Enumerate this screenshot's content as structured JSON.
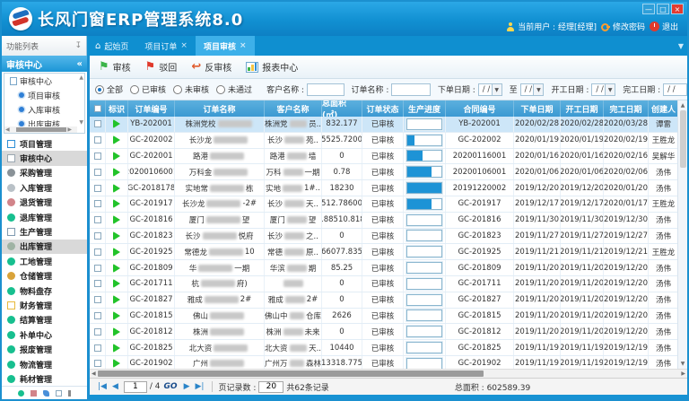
{
  "window": {
    "title": "长风门窗ERP管理系统8.0",
    "user_label": "当前用户 : 经理[经理]",
    "change_password": "修改密码",
    "logout": "退出",
    "min": "—",
    "max": "□",
    "close": "×"
  },
  "tabs": {
    "panel_header": "功能列表",
    "items": [
      {
        "label": "起始页",
        "home": true,
        "closable": false,
        "active": false
      },
      {
        "label": "项目订单",
        "home": false,
        "closable": true,
        "active": false
      },
      {
        "label": "项目审核",
        "home": false,
        "closable": true,
        "active": true
      }
    ]
  },
  "sidebar": {
    "section_header": "审核中心",
    "collapse_icon": "«",
    "tree": {
      "root": "审核中心",
      "children": [
        "项目审核",
        "入库审核",
        "出库审核",
        "入库审核回退"
      ]
    },
    "menu": [
      {
        "label": "项目管理",
        "shape": "rect",
        "color": "#2f8fd6",
        "selected": false
      },
      {
        "label": "审核中心",
        "shape": "rect",
        "color": "#9aa7b0",
        "selected": true
      },
      {
        "label": "采购管理",
        "shape": "dot",
        "color": "#8a9298",
        "selected": false
      },
      {
        "label": "入库管理",
        "shape": "dot",
        "color": "#b9c1c7",
        "selected": false
      },
      {
        "label": "退货管理",
        "shape": "dot",
        "color": "#d2848a",
        "selected": false
      },
      {
        "label": "退库管理",
        "shape": "dot",
        "color": "#17bf8f",
        "selected": false
      },
      {
        "label": "生产管理",
        "shape": "rect",
        "color": "#7f9ab0",
        "selected": false
      },
      {
        "label": "出库管理",
        "shape": "dot",
        "color": "#9fb3a4",
        "selected": true
      },
      {
        "label": "工地管理",
        "shape": "dot",
        "color": "#17bf8f",
        "selected": false
      },
      {
        "label": "仓储管理",
        "shape": "dot",
        "color": "#d9a33a",
        "selected": false
      },
      {
        "label": "物料盘存",
        "shape": "dot",
        "color": "#17bf8f",
        "selected": false
      },
      {
        "label": "财务管理",
        "shape": "rect",
        "color": "#e8b93c",
        "selected": false
      },
      {
        "label": "结算管理",
        "shape": "dot",
        "color": "#17bf8f",
        "selected": false
      },
      {
        "label": "补单中心",
        "shape": "dot",
        "color": "#17bf8f",
        "selected": false
      },
      {
        "label": "报废管理",
        "shape": "dot",
        "color": "#17bf8f",
        "selected": false
      },
      {
        "label": "物流管理",
        "shape": "dot",
        "color": "#17bf8f",
        "selected": false
      },
      {
        "label": "耗材管理",
        "shape": "dot",
        "color": "#17bf8f",
        "selected": false
      }
    ]
  },
  "toolbar": {
    "buttons": [
      {
        "label": "审核",
        "icon": "flag-green"
      },
      {
        "label": "驳回",
        "icon": "flag-red"
      },
      {
        "label": "反审核",
        "icon": "arrow-red"
      },
      {
        "label": "报表中心",
        "icon": "chart"
      }
    ]
  },
  "filters": {
    "radios": [
      {
        "label": "全部",
        "checked": true
      },
      {
        "label": "已审核",
        "checked": false
      },
      {
        "label": "未审核",
        "checked": false
      },
      {
        "label": "未通过",
        "checked": false
      }
    ],
    "customer_label": "客户名称 :",
    "order_label": "订单名称 :",
    "order_date_label": "下单日期 :",
    "to_label": "至",
    "start_date_label": "开工日期 :",
    "finish_date_label": "完工日期 :",
    "date_placeholder": "/  /"
  },
  "table": {
    "columns": [
      "选择",
      "标识",
      "订单编号",
      "订单名称",
      "客户名称",
      "总面积(㎡)",
      "订单状态",
      "生产进度",
      "合同编号",
      "下单日期",
      "开工日期",
      "完工日期",
      "创建人"
    ],
    "rows": [
      {
        "selected": true,
        "order_no": "YB-202001",
        "name_pre": "株洲党校",
        "name_post": "",
        "cust_pre": "株洲党",
        "cust_post": "员..",
        "area": "832.177",
        "status": "已审核",
        "progress": 0,
        "contract_no": "YB-202001",
        "order_date": "2020/02/28",
        "start_date": "2020/02/28",
        "finish_date": "2020/03/28",
        "creator": "谭雷"
      },
      {
        "selected": false,
        "order_no": "GC-202002",
        "name_pre": "长沙龙",
        "name_post": "",
        "cust_pre": "长沙",
        "cust_post": "苑..",
        "area": "65525.7200..",
        "status": "已审核",
        "progress": 20,
        "contract_no": "GC-202002",
        "order_date": "2020/01/19",
        "start_date": "2020/01/19",
        "finish_date": "2020/02/19",
        "creator": "王胜龙"
      },
      {
        "selected": false,
        "order_no": "GC-202001",
        "name_pre": "路港",
        "name_post": "",
        "cust_pre": "路港",
        "cust_post": "墙",
        "area": "0",
        "status": "已审核",
        "progress": 45,
        "contract_no": "20200116001",
        "order_date": "2020/01/16",
        "start_date": "2020/01/16",
        "finish_date": "2020/02/16",
        "creator": "吴解华"
      },
      {
        "selected": false,
        "order_no": "20200106001",
        "name_pre": "万科金",
        "name_post": "",
        "cust_pre": "万科",
        "cust_post": "一期",
        "area": "0.78",
        "status": "已审核",
        "progress": 70,
        "contract_no": "20200106001",
        "order_date": "2020/01/06",
        "start_date": "2020/01/06",
        "finish_date": "2020/02/06",
        "creator": "汤伟"
      },
      {
        "selected": false,
        "order_no": "GC-2018178",
        "name_pre": "实地常",
        "name_post": "栋",
        "cust_pre": "实地",
        "cust_post": "1#..",
        "area": "18230",
        "status": "已审核",
        "progress": 100,
        "contract_no": "20191220002",
        "order_date": "2019/12/20",
        "start_date": "2019/12/20",
        "finish_date": "2020/01/20",
        "creator": "汤伟"
      },
      {
        "selected": false,
        "order_no": "GC-201917",
        "name_pre": "长沙龙",
        "name_post": "-2#",
        "cust_pre": "长沙",
        "cust_post": "天..",
        "area": "8512.78600..",
        "status": "已审核",
        "progress": 70,
        "contract_no": "GC-201917",
        "order_date": "2019/12/17",
        "start_date": "2019/12/17",
        "finish_date": "2020/01/17",
        "creator": "王胜龙"
      },
      {
        "selected": false,
        "order_no": "GC-201816",
        "name_pre": "厦门",
        "name_post": "望",
        "cust_pre": "厦门",
        "cust_post": "望",
        "area": "188510.818",
        "status": "已审核",
        "progress": 0,
        "contract_no": "GC-201816",
        "order_date": "2019/11/30",
        "start_date": "2019/11/30",
        "finish_date": "2019/12/30",
        "creator": "汤伟"
      },
      {
        "selected": false,
        "order_no": "GC-201823",
        "name_pre": "长沙",
        "name_post": "悦府",
        "cust_pre": "长沙",
        "cust_post": "之..",
        "area": "0",
        "status": "已审核",
        "progress": 0,
        "contract_no": "GC-201823",
        "order_date": "2019/11/27",
        "start_date": "2019/11/27",
        "finish_date": "2019/12/27",
        "creator": "汤伟"
      },
      {
        "selected": false,
        "order_no": "GC-201925",
        "name_pre": "常德龙",
        "name_post": "10",
        "cust_pre": "常德",
        "cust_post": "原..",
        "area": "266077.835..",
        "status": "已审核",
        "progress": 0,
        "contract_no": "GC-201925",
        "order_date": "2019/11/21",
        "start_date": "2019/11/21",
        "finish_date": "2019/12/21",
        "creator": "王胜龙"
      },
      {
        "selected": false,
        "order_no": "GC-201809",
        "name_pre": "华",
        "name_post": "一期",
        "cust_pre": "华滨",
        "cust_post": "期",
        "area": "85.25",
        "status": "已审核",
        "progress": 0,
        "contract_no": "GC-201809",
        "order_date": "2019/11/20",
        "start_date": "2019/11/20",
        "finish_date": "2019/12/20",
        "creator": "汤伟"
      },
      {
        "selected": false,
        "order_no": "GC-201711",
        "name_pre": "杭",
        "name_post": "府)",
        "cust_pre": "",
        "cust_post": "",
        "area": "0",
        "status": "已审核",
        "progress": 0,
        "contract_no": "GC-201711",
        "order_date": "2019/11/20",
        "start_date": "2019/11/20",
        "finish_date": "2019/12/20",
        "creator": "汤伟"
      },
      {
        "selected": false,
        "order_no": "GC-201827",
        "name_pre": "雅成",
        "name_post": "2#",
        "cust_pre": "雅成",
        "cust_post": "2#",
        "area": "0",
        "status": "已审核",
        "progress": 0,
        "contract_no": "GC-201827",
        "order_date": "2019/11/20",
        "start_date": "2019/11/20",
        "finish_date": "2019/12/20",
        "creator": "汤伟"
      },
      {
        "selected": false,
        "order_no": "GC-201815",
        "name_pre": "佛山",
        "name_post": "",
        "cust_pre": "佛山中",
        "cust_post": "仓库",
        "area": "2626",
        "status": "已审核",
        "progress": 0,
        "contract_no": "GC-201815",
        "order_date": "2019/11/20",
        "start_date": "2019/11/20",
        "finish_date": "2019/12/20",
        "creator": "汤伟"
      },
      {
        "selected": false,
        "order_no": "GC-201812",
        "name_pre": "株洲",
        "name_post": "",
        "cust_pre": "株洲",
        "cust_post": "未来",
        "area": "0",
        "status": "已审核",
        "progress": 0,
        "contract_no": "GC-201812",
        "order_date": "2019/11/20",
        "start_date": "2019/11/20",
        "finish_date": "2019/12/20",
        "creator": "汤伟"
      },
      {
        "selected": false,
        "order_no": "GC-201825",
        "name_pre": "北大资",
        "name_post": "",
        "cust_pre": "北大资",
        "cust_post": "天..",
        "area": "10440",
        "status": "已审核",
        "progress": 0,
        "contract_no": "GC-201825",
        "order_date": "2019/11/19",
        "start_date": "2019/11/19",
        "finish_date": "2019/12/19",
        "creator": "汤伟"
      },
      {
        "selected": false,
        "order_no": "GC-201902",
        "name_pre": "广州",
        "name_post": "",
        "cust_pre": "广州万",
        "cust_post": "森林",
        "area": "13318.775",
        "status": "已审核",
        "progress": 0,
        "contract_no": "GC-201902",
        "order_date": "2019/11/19",
        "start_date": "2019/11/19",
        "finish_date": "2019/12/19",
        "creator": "汤伟"
      }
    ]
  },
  "pagination": {
    "first": "|◀",
    "prev": "◀",
    "page": "1",
    "of": "/ 4",
    "go": "GO",
    "next": "▶",
    "last": "▶|",
    "page_size_label": "页记录数 :",
    "page_size": "20",
    "records": "共62条记录",
    "total_label": "总面积 : 602589.39"
  }
}
